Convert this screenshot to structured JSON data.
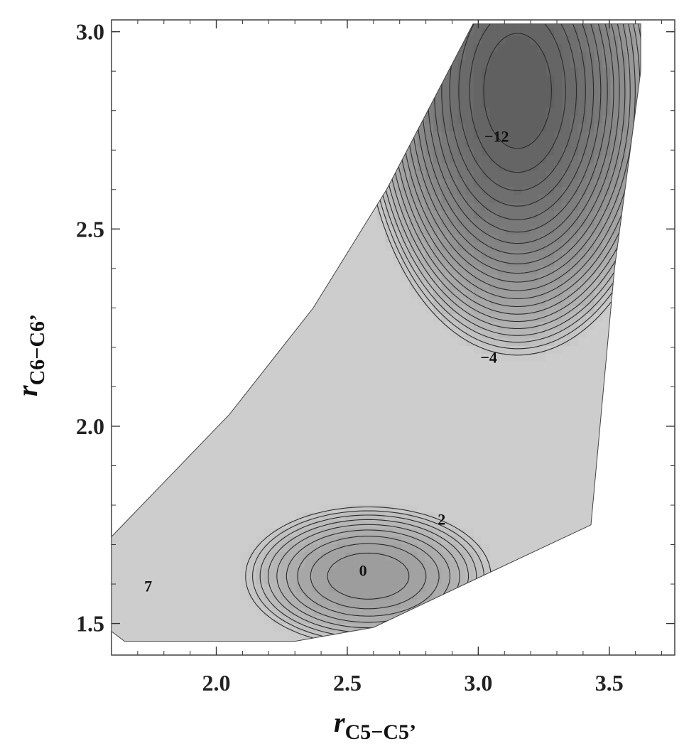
{
  "chart_data": {
    "type": "contour",
    "title": "",
    "xlabel": {
      "main": "r",
      "sub": "C5−C5’"
    },
    "ylabel": {
      "main": "r",
      "sub": "C6−C6’"
    },
    "xlim": [
      1.6,
      3.75
    ],
    "ylim": [
      1.42,
      3.03
    ],
    "xticks": [
      2.0,
      2.5,
      3.0,
      3.5
    ],
    "yticks": [
      1.5,
      2.0,
      2.5,
      3.0
    ],
    "xtick_labels": [
      "2.0",
      "2.5",
      "3.0",
      "3.5"
    ],
    "ytick_labels": [
      "1.5",
      "2.0",
      "2.5",
      "3.0"
    ],
    "grid": false,
    "contour_labels": [
      {
        "text": "−12",
        "x": 3.07,
        "y": 2.73
      },
      {
        "text": "−4",
        "x": 3.04,
        "y": 2.17
      },
      {
        "text": "2",
        "x": 2.86,
        "y": 1.76
      },
      {
        "text": "0",
        "x": 2.56,
        "y": 1.63
      },
      {
        "text": "7",
        "x": 1.74,
        "y": 1.59
      }
    ],
    "domain_boundary": [
      [
        1.6,
        1.72
      ],
      [
        2.05,
        2.03
      ],
      [
        2.37,
        2.3
      ],
      [
        2.65,
        2.6
      ],
      [
        2.98,
        3.02
      ],
      [
        3.62,
        3.02
      ],
      [
        3.62,
        2.9
      ],
      [
        3.52,
        2.4
      ],
      [
        3.43,
        1.75
      ],
      [
        2.95,
        1.6
      ],
      [
        2.6,
        1.49
      ],
      [
        2.3,
        1.455
      ],
      [
        1.65,
        1.455
      ],
      [
        1.6,
        1.48
      ]
    ],
    "minima": [
      {
        "x": 3.15,
        "y": 2.85,
        "value": -12
      },
      {
        "x": 2.58,
        "y": 1.62,
        "value": 0
      }
    ]
  }
}
